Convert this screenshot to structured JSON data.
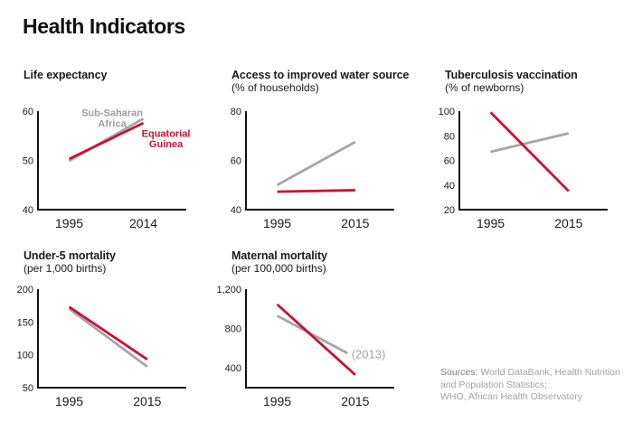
{
  "page_title": "Health Indicators",
  "colors": {
    "red": "#cd0f32",
    "gray": "#a5a5a5",
    "legend_gray": "#9c9c9c",
    "annotation_gray": "#a5a5a5",
    "axis": "#111111",
    "tick_text": "#1a1a1a"
  },
  "sources": {
    "label": "Sources:",
    "line1_rest": "World DataBank, Health Nutrition",
    "line2": "and Population Statistics;",
    "line3": "WHO, African Health Observatory"
  },
  "chart_data": [
    {
      "id": "life-expectancy",
      "type": "line",
      "title": "Life expectancy",
      "subtitle": "",
      "xlim": [
        1987,
        2025
      ],
      "x_tick_years": [
        1995,
        2014
      ],
      "x_tick_labels": [
        "1995",
        "2014"
      ],
      "ylim": [
        40,
        60
      ],
      "y_ticks": [
        40,
        50,
        60
      ],
      "y_tick_labels": [
        "40",
        "50",
        "60"
      ],
      "grid": false,
      "series": [
        {
          "name": "Sub-Saharan Africa",
          "color": "gray",
          "x": [
            1995,
            2014
          ],
          "values": [
            49.9,
            58.5
          ]
        },
        {
          "name": "Equatorial Guinea",
          "color": "red",
          "x": [
            1995,
            2014
          ],
          "values": [
            50.3,
            57.6
          ]
        }
      ],
      "annotations": [
        {
          "text": "Sub-Saharan",
          "x": 2006,
          "y": 59.0,
          "color": "legend_gray",
          "bold": true,
          "size": 11,
          "anchor": "middle"
        },
        {
          "text": "Africa",
          "x": 2006,
          "y": 56.8,
          "color": "legend_gray",
          "bold": true,
          "size": 11,
          "anchor": "middle"
        },
        {
          "text": "Equatorial",
          "x": 2019.8,
          "y": 54.8,
          "color": "red",
          "bold": true,
          "size": 11,
          "anchor": "middle"
        },
        {
          "text": "Guinea",
          "x": 2019.8,
          "y": 52.7,
          "color": "red",
          "bold": true,
          "size": 11,
          "anchor": "middle"
        }
      ]
    },
    {
      "id": "water-access",
      "type": "line",
      "title": "Access to improved water source",
      "subtitle": "(% of households)",
      "xlim": [
        1987,
        2025
      ],
      "x_tick_years": [
        1995,
        2015
      ],
      "x_tick_labels": [
        "1995",
        "2015"
      ],
      "ylim": [
        40,
        80
      ],
      "y_ticks": [
        40,
        60,
        80
      ],
      "y_tick_labels": [
        "40",
        "60",
        "80"
      ],
      "grid": false,
      "series": [
        {
          "name": "Sub-Saharan Africa",
          "color": "gray",
          "x": [
            1995,
            2015
          ],
          "values": [
            50.0,
            67.5
          ]
        },
        {
          "name": "Equatorial Guinea",
          "color": "red",
          "x": [
            1995,
            2015
          ],
          "values": [
            47.3,
            47.9
          ]
        }
      ],
      "annotations": []
    },
    {
      "id": "tuberculosis-vaccination",
      "type": "line",
      "title": "Tuberculosis vaccination",
      "subtitle": "(% of newborns)",
      "xlim": [
        1987,
        2025
      ],
      "x_tick_years": [
        1995,
        2015
      ],
      "x_tick_labels": [
        "1995",
        "2015"
      ],
      "ylim": [
        20,
        100
      ],
      "y_ticks": [
        20,
        40,
        60,
        80,
        100
      ],
      "y_tick_labels": [
        "20",
        "40",
        "60",
        "80",
        "100"
      ],
      "grid": false,
      "series": [
        {
          "name": "Sub-Saharan Africa",
          "color": "gray",
          "x": [
            1995,
            2015
          ],
          "values": [
            67,
            82
          ]
        },
        {
          "name": "Equatorial Guinea",
          "color": "red",
          "x": [
            1995,
            2015
          ],
          "values": [
            99,
            35
          ]
        }
      ],
      "annotations": []
    },
    {
      "id": "under5-mortality",
      "type": "line",
      "title": "Under-5 mortality",
      "subtitle": "(per 1,000 births)",
      "xlim": [
        1987,
        2025
      ],
      "x_tick_years": [
        1995,
        2015
      ],
      "x_tick_labels": [
        "1995",
        "2015"
      ],
      "ylim": [
        50,
        200
      ],
      "y_ticks": [
        50,
        100,
        150,
        200
      ],
      "y_tick_labels": [
        "50",
        "100",
        "150",
        "200"
      ],
      "grid": false,
      "series": [
        {
          "name": "Sub-Saharan Africa",
          "color": "gray",
          "x": [
            1995,
            2015
          ],
          "values": [
            170,
            82
          ]
        },
        {
          "name": "Equatorial Guinea",
          "color": "red",
          "x": [
            1995,
            2015
          ],
          "values": [
            173,
            93
          ]
        }
      ],
      "annotations": []
    },
    {
      "id": "maternal-mortality",
      "type": "line",
      "title": "Maternal mortality",
      "subtitle": "(per 100,000 births)",
      "xlim": [
        1987,
        2025
      ],
      "x_tick_years": [
        1995,
        2015
      ],
      "x_tick_labels": [
        "1995",
        "2015"
      ],
      "ylim": [
        200,
        1200
      ],
      "y_ticks": [
        400,
        800,
        1200
      ],
      "y_tick_labels": [
        "400",
        "800",
        "1,200"
      ],
      "grid": false,
      "series": [
        {
          "name": "Sub-Saharan Africa",
          "color": "gray",
          "x": [
            1995,
            2013
          ],
          "values": [
            930,
            550
          ]
        },
        {
          "name": "Equatorial Guinea",
          "color": "red",
          "x": [
            1995,
            2015
          ],
          "values": [
            1045,
            330
          ]
        }
      ],
      "annotations": [
        {
          "text": "(2013)",
          "x": 2018.4,
          "y": 500,
          "color": "annotation_gray",
          "bold": false,
          "size": 13,
          "anchor": "middle"
        }
      ]
    }
  ]
}
